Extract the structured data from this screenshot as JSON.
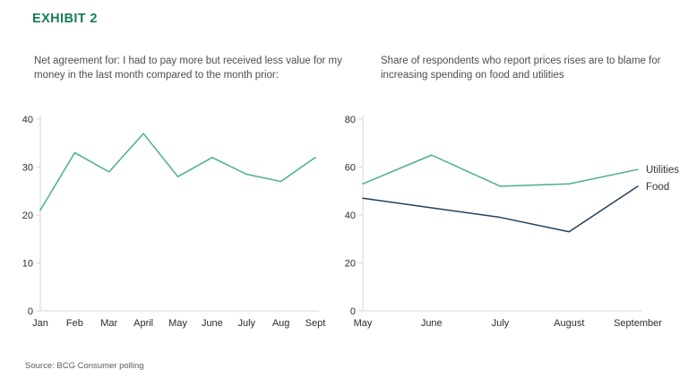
{
  "page": {
    "title": "EXHIBIT 2",
    "source": "Source: BCG Consumer polling"
  },
  "colors": {
    "title_green": "#177b57",
    "line_green": "#4ab183",
    "line_navy": "#24405c",
    "axis_gray": "#d4d4d4"
  },
  "chart_data": [
    {
      "type": "line",
      "title": "Net agreement for: I had to pay more but received less value for my money in the last month compared to the month prior:",
      "categories": [
        "Jan",
        "Feb",
        "Mar",
        "April",
        "May",
        "June",
        "July",
        "Aug",
        "Sept"
      ],
      "series": [
        {
          "name": "Net agreement",
          "values": [
            21,
            33,
            29,
            37,
            28,
            32,
            28.5,
            27,
            32
          ],
          "color": "#4ab183"
        }
      ],
      "xlabel": "",
      "ylabel": "",
      "ylim": [
        0,
        40
      ],
      "yticks": [
        0,
        10,
        20,
        30,
        40
      ],
      "grid": false,
      "legend": "none",
      "end_labels": false
    },
    {
      "type": "line",
      "title": "Share of respondents who report prices rises are to blame for increasing spending on food and utilities",
      "categories": [
        "May",
        "June",
        "July",
        "August",
        "September"
      ],
      "series": [
        {
          "name": "Utilities",
          "values": [
            53,
            65,
            52,
            53,
            59
          ],
          "color": "#4ab183"
        },
        {
          "name": "Food",
          "values": [
            47,
            43,
            39,
            33,
            52
          ],
          "color": "#24405c"
        }
      ],
      "xlabel": "",
      "ylabel": "",
      "ylim": [
        0,
        80
      ],
      "yticks": [
        0,
        20,
        40,
        60,
        80
      ],
      "grid": false,
      "legend": "labels at right end of lines",
      "end_labels": true
    }
  ]
}
